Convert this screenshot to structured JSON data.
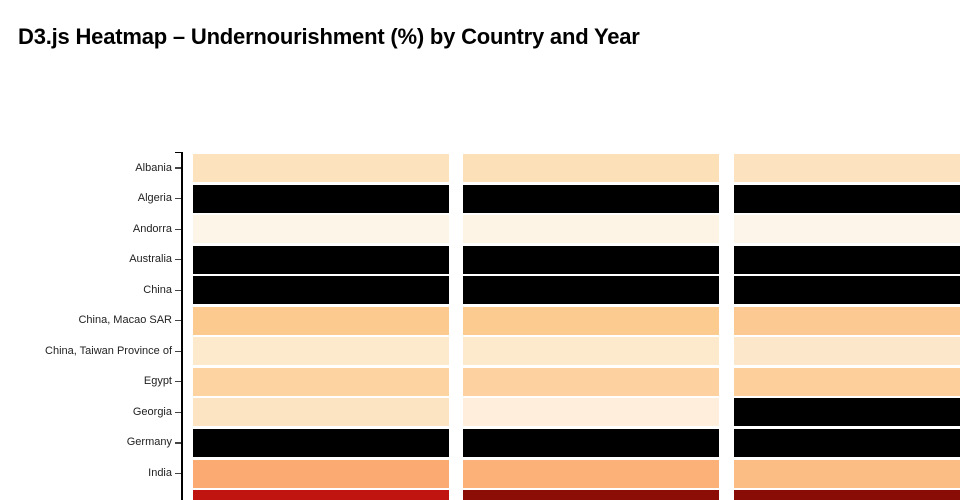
{
  "header": {
    "title": "D3.js Heatmap – Undernourishment (%) by Country and Year"
  },
  "chart_data": {
    "type": "heatmap",
    "title": "D3.js Heatmap – Undernourishment (%) by Country and Year",
    "xlabel": "",
    "ylabel": "",
    "legend": "none",
    "grid": false,
    "x_axis": {
      "column_count": 3,
      "column_labels": [
        "",
        "",
        ""
      ],
      "note": "year columns, tick labels not visible in screenshot, third column clipped at right edge"
    },
    "y_axis": {
      "side": "left",
      "tick_labels": [
        "Albania",
        "Algeria",
        "Andorra",
        "Australia",
        "China",
        "China, Macao SAR",
        "China, Taiwan Province of",
        "Egypt",
        "Georgia",
        "Germany",
        "India",
        ""
      ]
    },
    "missing_data_color": "#000000",
    "rows": [
      {
        "label": "Albania",
        "colors": [
          "#fce2bd",
          "#fce0b8",
          "#fde2c0"
        ],
        "values_est_pct": [
          10,
          9.8,
          10.5
        ]
      },
      {
        "label": "Algeria",
        "colors": [
          "#000000",
          "#000000",
          "#000000"
        ],
        "values_est_pct": [
          null,
          null,
          null
        ]
      },
      {
        "label": "Andorra",
        "colors": [
          "#fef5e9",
          "#fef4e6",
          "#fef5ea"
        ],
        "values_est_pct": [
          2,
          2,
          2
        ]
      },
      {
        "label": "Australia",
        "colors": [
          "#000000",
          "#000000",
          "#000000"
        ],
        "values_est_pct": [
          null,
          null,
          null
        ]
      },
      {
        "label": "China",
        "colors": [
          "#000000",
          "#000000",
          "#000000"
        ],
        "values_est_pct": [
          null,
          null,
          null
        ]
      },
      {
        "label": "China, Macao SAR",
        "colors": [
          "#fcca8e",
          "#fccb90",
          "#fcc992"
        ],
        "values_est_pct": [
          18,
          18,
          17.5
        ]
      },
      {
        "label": "China, Taiwan Province of",
        "colors": [
          "#fdeacd",
          "#fde9cb",
          "#fde7ca"
        ],
        "values_est_pct": [
          7,
          7,
          7.5
        ]
      },
      {
        "label": "Egypt",
        "colors": [
          "#fdd3a2",
          "#fdd2a0",
          "#fccf9b"
        ],
        "values_est_pct": [
          16,
          16,
          16.5
        ]
      },
      {
        "label": "Georgia",
        "colors": [
          "#fce4c3",
          "#feeedb",
          "#000000"
        ],
        "values_est_pct": [
          9.5,
          6,
          null
        ]
      },
      {
        "label": "Germany",
        "colors": [
          "#000000",
          "#000000",
          "#000000"
        ],
        "values_est_pct": [
          null,
          null,
          null
        ]
      },
      {
        "label": "India",
        "colors": [
          "#fbab71",
          "#fbb177",
          "#fcbd85"
        ],
        "values_est_pct": [
          23,
          22,
          20
        ]
      },
      {
        "label": "",
        "colors": [
          "#c01411",
          "#8c0c06",
          "#8a0c06"
        ],
        "values_est_pct": [
          51,
          57,
          57
        ]
      }
    ]
  }
}
